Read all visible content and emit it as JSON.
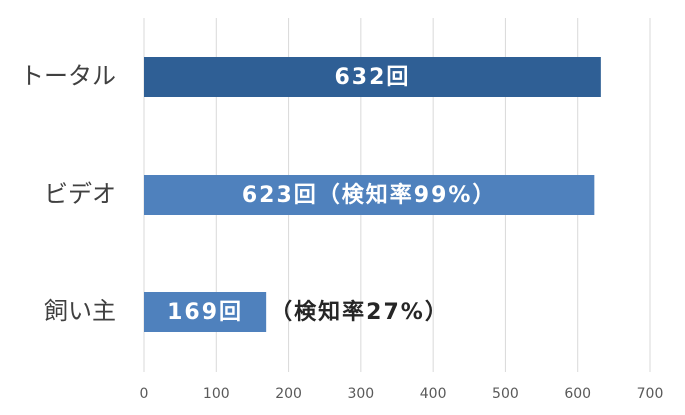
{
  "chart_data": {
    "type": "bar",
    "orientation": "horizontal",
    "categories": [
      "トータル",
      "ビデオ",
      "飼い主"
    ],
    "values": [
      632,
      623,
      169
    ],
    "value_labels": [
      "632回",
      "623回（検知率99%）",
      "169回"
    ],
    "colors": [
      "#2f5f95",
      "#4f81bd",
      "#4f81bd"
    ],
    "annotation": "（検知率27%）",
    "xlim": [
      0,
      700
    ],
    "xticks": [
      0,
      100,
      200,
      300,
      400,
      500,
      600,
      700
    ],
    "grid": true
  }
}
